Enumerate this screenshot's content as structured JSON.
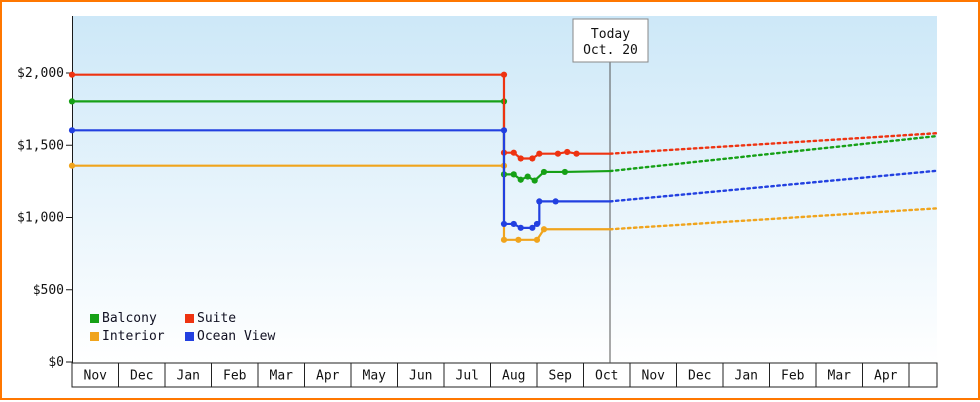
{
  "chart": {
    "frame_border_color": "#ff7700",
    "plot_bg_top": "#cde8f8",
    "plot_bg_bottom": "#ffffff",
    "axis_color": "#1a1a1a",
    "today_line_color": "#555555",
    "today_box_border": "#888888",
    "month_cell_border": "#222222"
  },
  "chart_data": {
    "type": "line",
    "y_axis": {
      "ticks": [
        0,
        500,
        1000,
        1500,
        2000
      ],
      "tick_labels": [
        "$0",
        "$500",
        "$1,000",
        "$1,500",
        "$2,000"
      ],
      "range": [
        0,
        2400
      ]
    },
    "x_axis": {
      "unit": "month",
      "labels": [
        "Nov",
        "Dec",
        "Jan",
        "Feb",
        "Mar",
        "Apr",
        "May",
        "Jun",
        "Jul",
        "Aug",
        "Sep",
        "Oct",
        "Nov",
        "Dec",
        "Jan",
        "Feb",
        "Mar",
        "Apr"
      ],
      "range": [
        0,
        18.6
      ]
    },
    "today_marker": {
      "line1": "Today",
      "line2": "Oct. 20",
      "x": 11.57
    },
    "series": [
      {
        "name": "Balcony",
        "color": "#16a016",
        "solid": [
          [
            0,
            1800
          ],
          [
            9.29,
            1800
          ],
          [
            9.29,
            1295
          ],
          [
            9.5,
            1295
          ],
          [
            9.65,
            1258
          ],
          [
            9.8,
            1280
          ],
          [
            9.95,
            1252
          ],
          [
            10.15,
            1312
          ],
          [
            10.6,
            1312
          ],
          [
            11.57,
            1318
          ]
        ],
        "dots": [
          [
            0,
            1800
          ],
          [
            9.29,
            1800
          ],
          [
            9.29,
            1295
          ],
          [
            9.5,
            1295
          ],
          [
            9.65,
            1258
          ],
          [
            9.8,
            1280
          ],
          [
            9.95,
            1252
          ],
          [
            10.15,
            1312
          ],
          [
            10.6,
            1312
          ]
        ],
        "forecast_dashed": [
          [
            11.57,
            1318
          ],
          [
            18.6,
            1560
          ]
        ]
      },
      {
        "name": "Suite",
        "color": "#ee3311",
        "solid": [
          [
            0,
            1985
          ],
          [
            9.29,
            1985
          ],
          [
            9.29,
            1445
          ],
          [
            9.5,
            1445
          ],
          [
            9.65,
            1405
          ],
          [
            9.9,
            1405
          ],
          [
            10.05,
            1438
          ],
          [
            10.45,
            1438
          ],
          [
            10.65,
            1450
          ],
          [
            10.85,
            1438
          ],
          [
            11.57,
            1438
          ]
        ],
        "dots": [
          [
            0,
            1985
          ],
          [
            9.29,
            1985
          ],
          [
            9.29,
            1445
          ],
          [
            9.5,
            1445
          ],
          [
            9.65,
            1405
          ],
          [
            9.9,
            1405
          ],
          [
            10.05,
            1438
          ],
          [
            10.45,
            1438
          ],
          [
            10.65,
            1450
          ],
          [
            10.85,
            1438
          ]
        ],
        "forecast_dashed": [
          [
            11.57,
            1438
          ],
          [
            18.6,
            1580
          ]
        ]
      },
      {
        "name": "Interior",
        "color": "#f0a41c",
        "solid": [
          [
            0,
            1355
          ],
          [
            9.29,
            1355
          ],
          [
            9.29,
            842
          ],
          [
            10.0,
            842
          ],
          [
            10.15,
            915
          ],
          [
            11.57,
            915
          ]
        ],
        "dots": [
          [
            0,
            1355
          ],
          [
            9.29,
            1355
          ],
          [
            9.29,
            842
          ],
          [
            9.6,
            842
          ],
          [
            10.0,
            842
          ],
          [
            10.15,
            915
          ]
        ],
        "forecast_dashed": [
          [
            11.57,
            915
          ],
          [
            18.6,
            1060
          ]
        ]
      },
      {
        "name": "Ocean View",
        "color": "#2240e0",
        "solid": [
          [
            0,
            1600
          ],
          [
            9.29,
            1600
          ],
          [
            9.29,
            952
          ],
          [
            9.5,
            952
          ],
          [
            9.65,
            925
          ],
          [
            9.9,
            925
          ],
          [
            10.0,
            952
          ],
          [
            10.05,
            952
          ],
          [
            10.05,
            1108
          ],
          [
            10.4,
            1108
          ],
          [
            11.57,
            1108
          ]
        ],
        "dots": [
          [
            0,
            1600
          ],
          [
            9.29,
            1600
          ],
          [
            9.29,
            952
          ],
          [
            9.5,
            952
          ],
          [
            9.65,
            925
          ],
          [
            9.9,
            925
          ],
          [
            10.0,
            952
          ],
          [
            10.05,
            1108
          ],
          [
            10.4,
            1108
          ]
        ],
        "forecast_dashed": [
          [
            11.57,
            1108
          ],
          [
            18.6,
            1320
          ]
        ]
      }
    ],
    "legend": {
      "position": "bottom-left",
      "rows": [
        [
          "Balcony",
          "Suite"
        ],
        [
          "Interior",
          "Ocean View"
        ]
      ]
    }
  }
}
